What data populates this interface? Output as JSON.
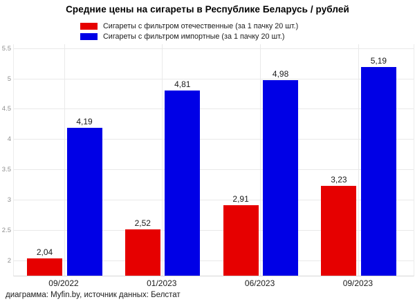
{
  "title": "Средние цены на сигареты в Республике Беларусь / рублей",
  "source_note": "диаграмма: Myfin.by, источник данных: Белстат",
  "legend": {
    "items": [
      {
        "key": "domestic",
        "label": "Сигареты с фильтром отечественные (за 1 пачку 20 шт.)",
        "color": "#e60000"
      },
      {
        "key": "imported",
        "label": "Сигареты с фильтром импортные (за 1 пачку 20 шт.)",
        "color": "#0000e6"
      }
    ]
  },
  "chart_data": {
    "type": "bar",
    "title": "Средние цены на сигареты в Республике Беларусь / рублей",
    "categories": [
      "09/2022",
      "01/2023",
      "06/2023",
      "09/2023"
    ],
    "series": [
      {
        "key": "domestic",
        "name": "Сигареты с фильтром отечественные (за 1 пачку 20 шт.)",
        "color": "#e60000",
        "values": [
          2.04,
          2.52,
          2.91,
          3.23
        ],
        "value_labels": [
          "2,04",
          "2,52",
          "2,91",
          "3,23"
        ]
      },
      {
        "key": "imported",
        "name": "Сигареты с фильтром импортные (за 1 пачку 20 шт.)",
        "color": "#0000e6",
        "values": [
          4.19,
          4.81,
          4.98,
          5.19
        ],
        "value_labels": [
          "4,19",
          "4,81",
          "4,98",
          "5,19"
        ]
      }
    ],
    "xlabel": "",
    "ylabel": "",
    "y_ticks": [
      {
        "value": 5.5,
        "label": "5.5"
      },
      {
        "value": 5.0,
        "label": "5"
      },
      {
        "value": 4.5,
        "label": "4.5"
      },
      {
        "value": 4.0,
        "label": "4"
      },
      {
        "value": 3.5,
        "label": "3.5"
      },
      {
        "value": 3.0,
        "label": "3"
      },
      {
        "value": 2.5,
        "label": "2.5"
      },
      {
        "value": 2.0,
        "label": "2"
      }
    ],
    "ylim": [
      1.75,
      5.57
    ],
    "grid": true,
    "legend_position": "top",
    "decimal_separator_values": ",",
    "decimal_separator_axis": "."
  },
  "colors": {
    "background": "#ffffff",
    "grid": "#e9e9e9",
    "axis_line": "#d6d6d6",
    "y_tick_label": "#8e8e8e",
    "text": "#1a1a1a"
  }
}
